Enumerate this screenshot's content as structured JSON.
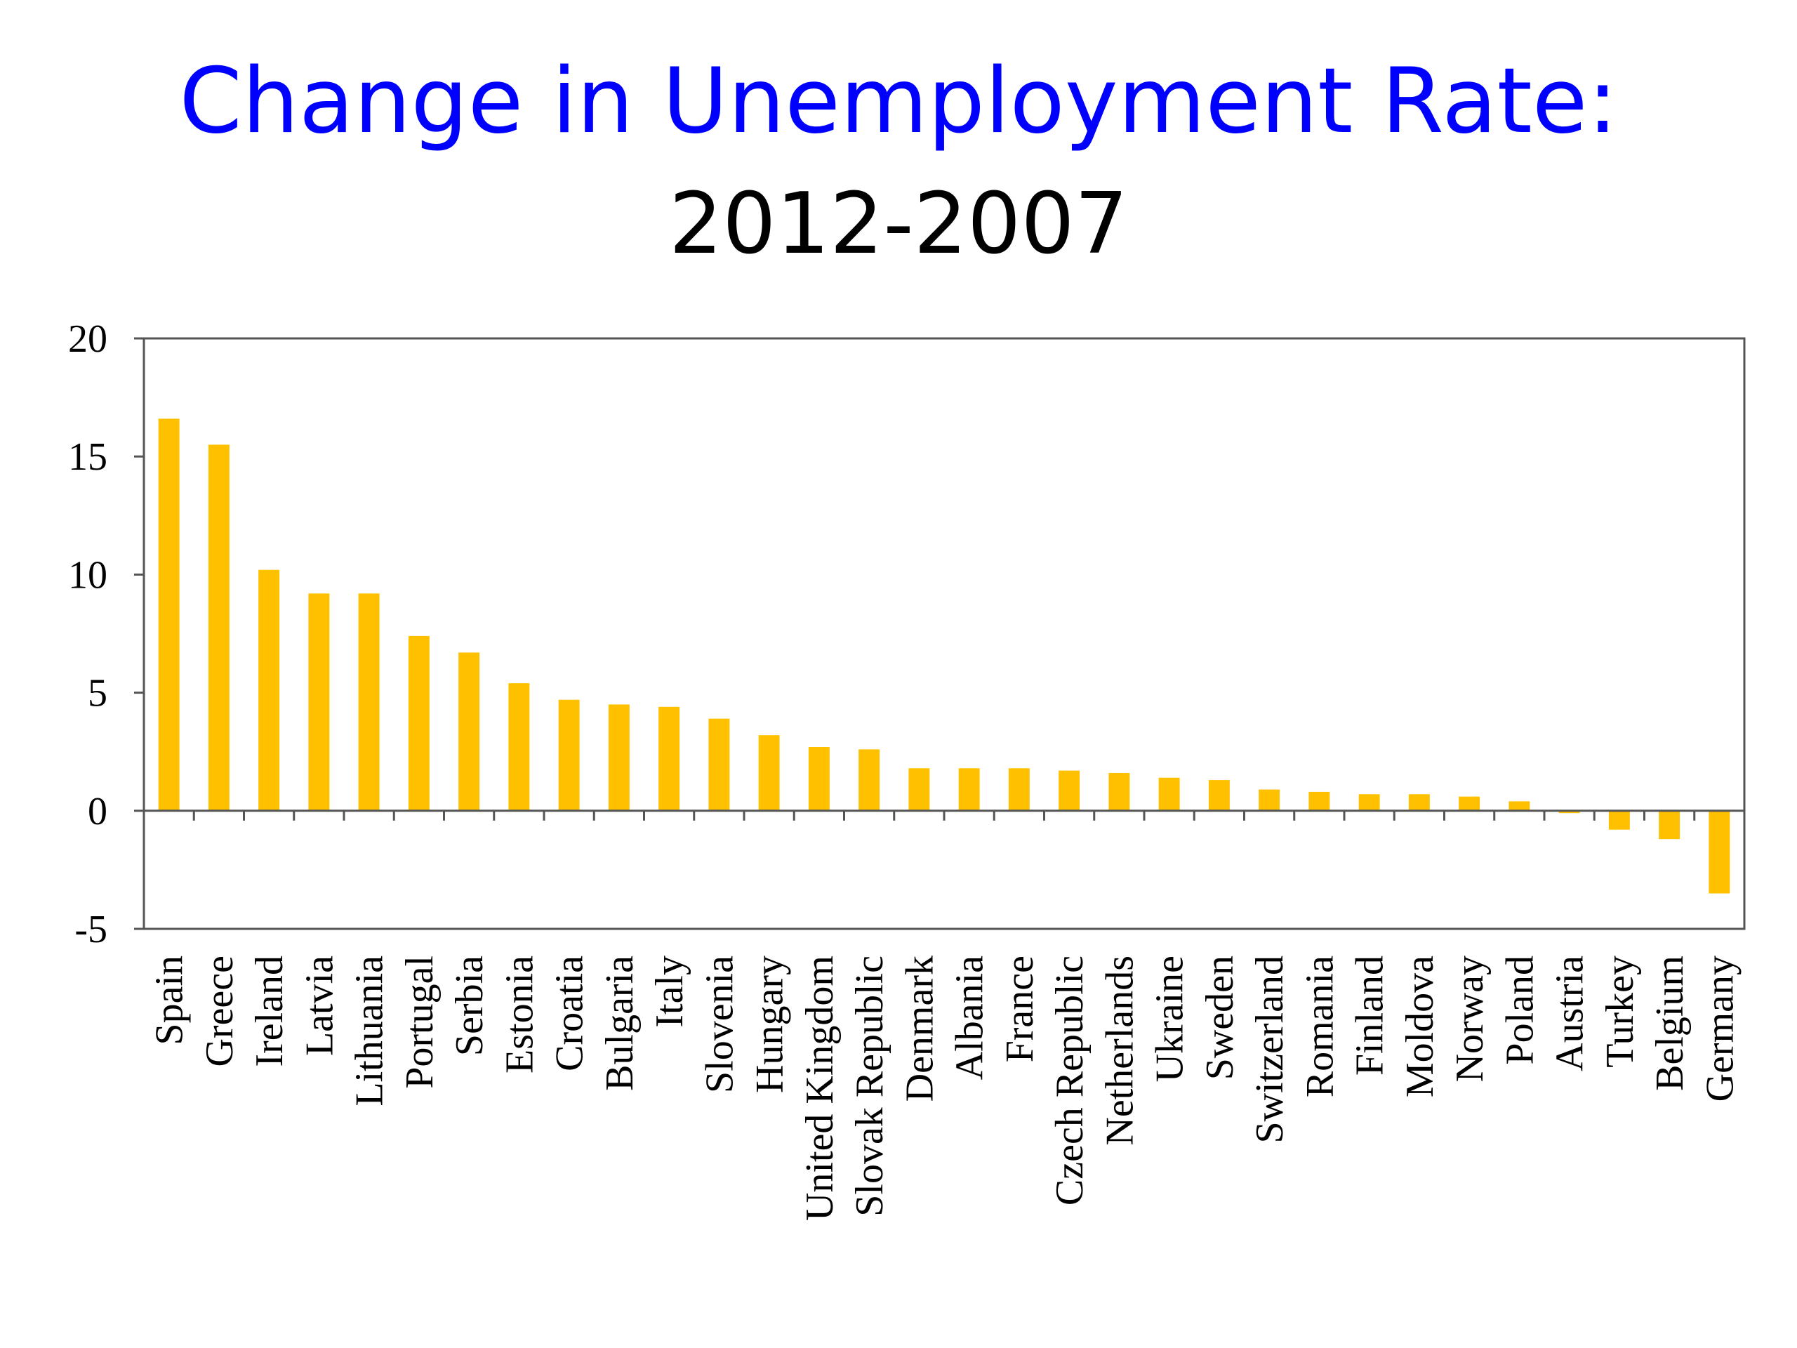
{
  "chart_data": {
    "type": "bar",
    "title": "Change in Unemployment Rate:",
    "subtitle": "2012-2007",
    "xlabel": "",
    "ylabel": "",
    "ylim": [
      -5,
      20
    ],
    "yticks": [
      20,
      15,
      10,
      5,
      0,
      -5
    ],
    "grid": false,
    "bar_color": "#ffc000",
    "categories": [
      "Spain",
      "Greece",
      "Ireland",
      "Latvia",
      "Lithuania",
      "Portugal",
      "Serbia",
      "Estonia",
      "Croatia",
      "Bulgaria",
      "Italy",
      "Slovenia",
      "Hungary",
      "United Kingdom",
      "Slovak Republic",
      "Denmark",
      "Albania",
      "France",
      "Czech Republic",
      "Netherlands",
      "Ukraine",
      "Sweden",
      "Switzerland",
      "Romania",
      "Finland",
      "Moldova",
      "Norway",
      "Poland",
      "Austria",
      "Turkey",
      "Belgium",
      "Germany"
    ],
    "values": [
      16.6,
      15.5,
      10.2,
      9.2,
      9.2,
      7.4,
      6.7,
      5.4,
      4.7,
      4.5,
      4.4,
      3.9,
      3.2,
      2.7,
      2.6,
      1.8,
      1.8,
      1.8,
      1.7,
      1.6,
      1.4,
      1.3,
      0.9,
      0.8,
      0.7,
      0.7,
      0.6,
      0.4,
      -0.1,
      -0.8,
      -1.2,
      -3.5
    ]
  }
}
